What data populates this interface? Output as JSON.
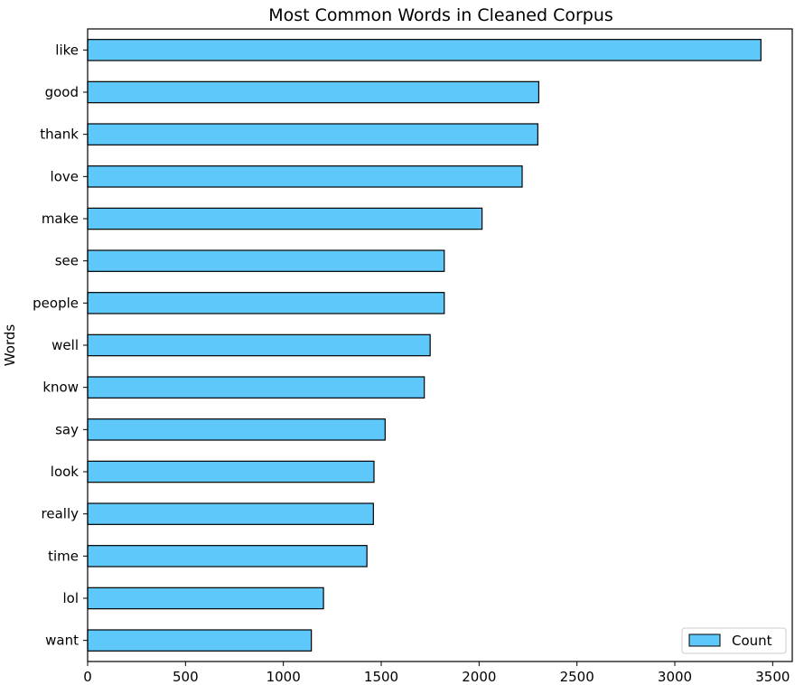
{
  "chart_data": {
    "type": "bar",
    "orientation": "horizontal",
    "title": "Most Common Words in Cleaned Corpus",
    "xlabel": "",
    "ylabel": "Words",
    "categories": [
      "like",
      "good",
      "thank",
      "love",
      "make",
      "see",
      "people",
      "well",
      "know",
      "say",
      "look",
      "really",
      "time",
      "lol",
      "want"
    ],
    "series": [
      {
        "name": "Count",
        "values": [
          3440,
          2305,
          2300,
          2220,
          2015,
          1822,
          1822,
          1750,
          1720,
          1520,
          1463,
          1460,
          1427,
          1205,
          1143
        ]
      }
    ],
    "xlim": [
      0,
      3600
    ],
    "xticks": [
      "0",
      "500",
      "1000",
      "1500",
      "2000",
      "2500",
      "3000",
      "3500"
    ],
    "grid": false,
    "legend_position": "lower-right",
    "colors": {
      "bar_fill": "#5ec8fb",
      "bar_edge": "#000000"
    }
  }
}
